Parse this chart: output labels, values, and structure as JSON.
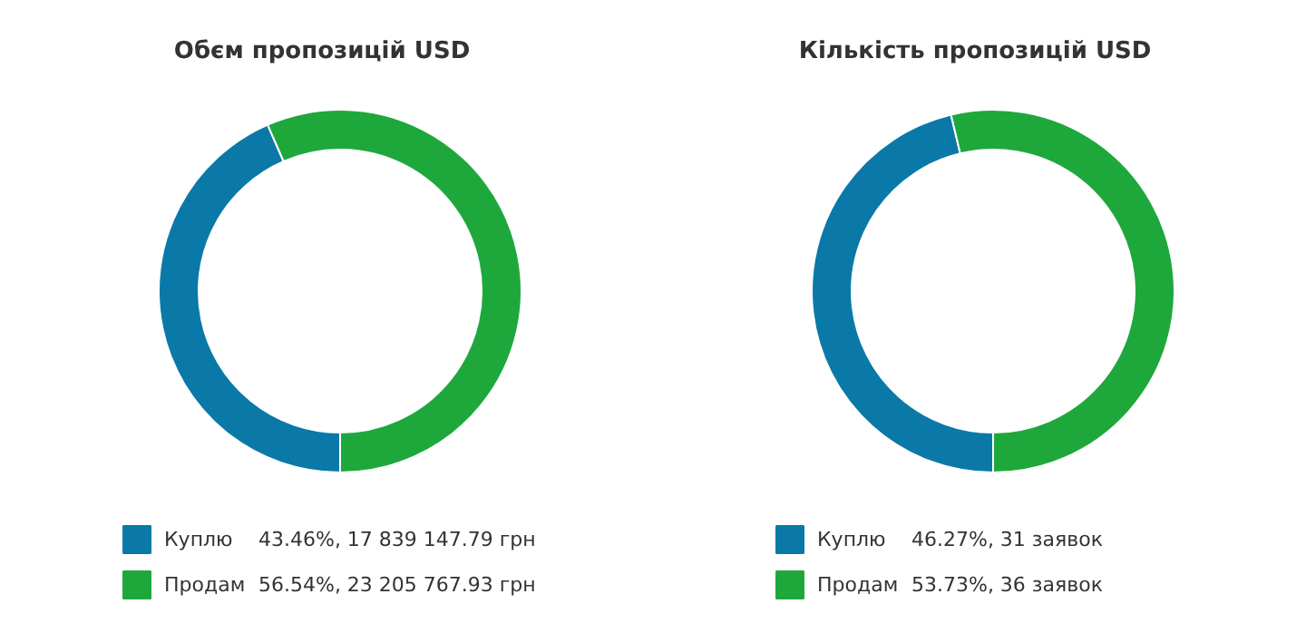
{
  "chart_data": [
    {
      "type": "donut",
      "title": "Обєм пропозицій USD",
      "categories": [
        "Куплю",
        "Продам"
      ],
      "values": [
        43.46,
        56.54
      ],
      "colors": [
        "#0a79a8",
        "#1ea83c"
      ],
      "value_labels": [
        "43.46%, 17 839 147.79 грн",
        "56.54%, 23 205 767.93 грн"
      ],
      "legend": "bottom"
    },
    {
      "type": "donut",
      "title": "Кількість пропозицій USD",
      "categories": [
        "Куплю",
        "Продам"
      ],
      "values": [
        46.27,
        53.73
      ],
      "colors": [
        "#0a79a8",
        "#1ea83c"
      ],
      "value_labels": [
        "46.27%, 31 заявок",
        "53.73%, 36 заявок"
      ],
      "legend": "bottom"
    }
  ]
}
